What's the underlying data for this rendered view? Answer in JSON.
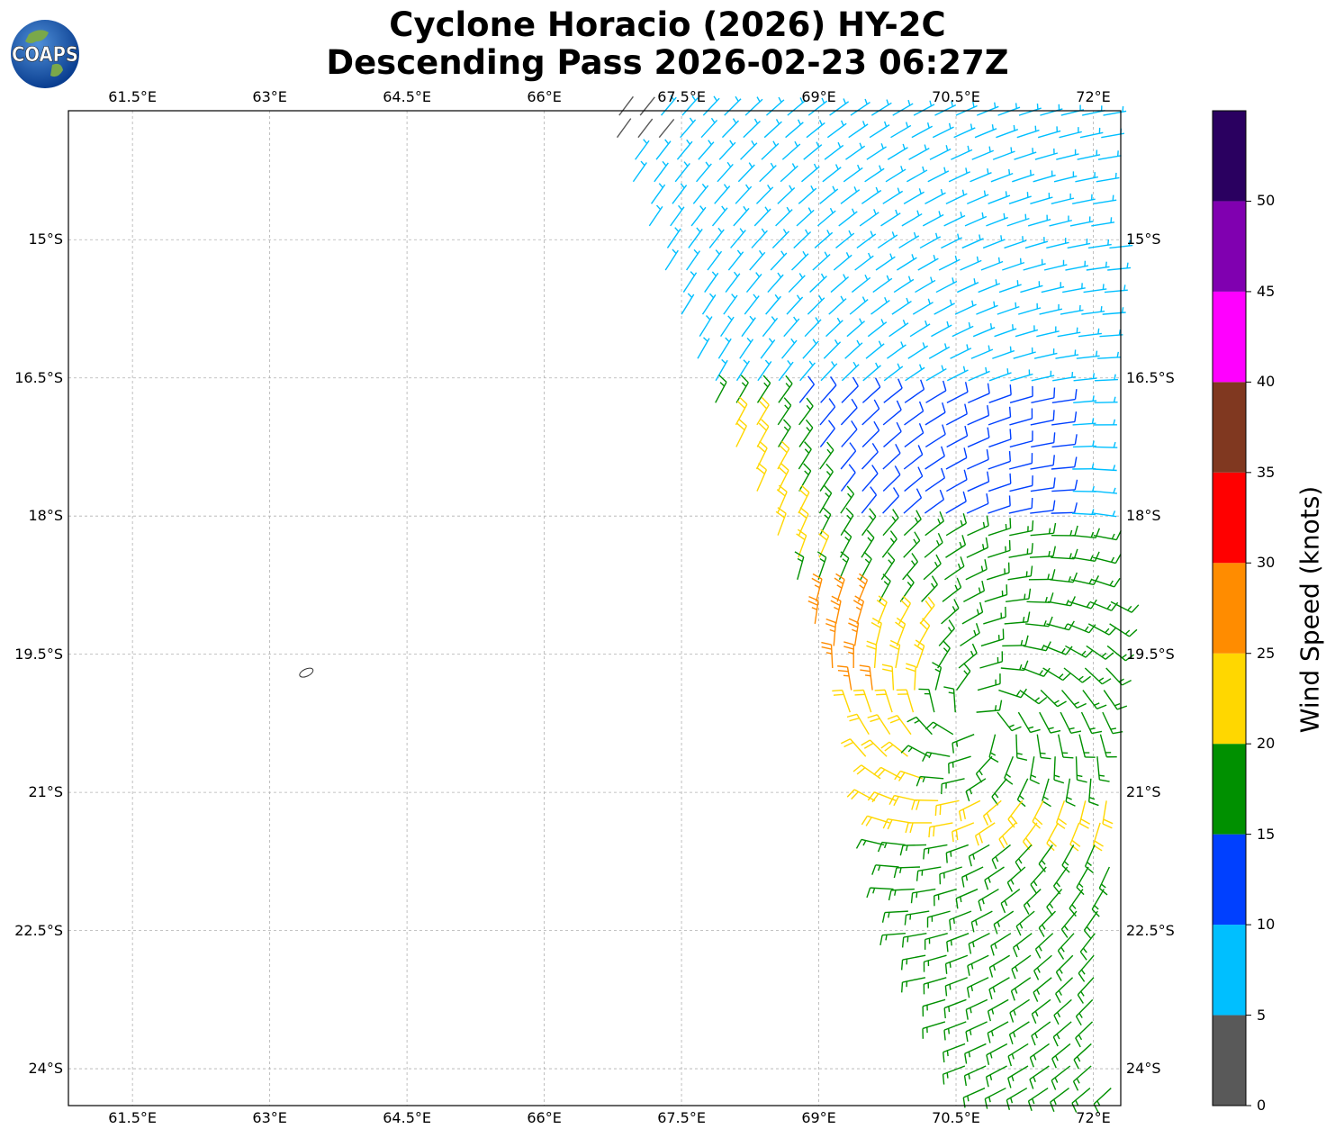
{
  "title": {
    "line1": "Cyclone Horacio (2026) HY-2C",
    "line2": "Descending Pass 2026-02-23 06:27Z"
  },
  "logo": {
    "text": "COAPS"
  },
  "map": {
    "lon_range": [
      60.8,
      72.3
    ],
    "lat_range": [
      -24.4,
      -13.6
    ],
    "lon_ticks": [
      {
        "value": 61.5,
        "label": "61.5°E"
      },
      {
        "value": 63.0,
        "label": "63°E"
      },
      {
        "value": 64.5,
        "label": "64.5°E"
      },
      {
        "value": 66.0,
        "label": "66°E"
      },
      {
        "value": 67.5,
        "label": "67.5°E"
      },
      {
        "value": 69.0,
        "label": "69°E"
      },
      {
        "value": 70.5,
        "label": "70.5°E"
      },
      {
        "value": 72.0,
        "label": "72°E"
      }
    ],
    "lat_ticks": [
      {
        "value": -15.0,
        "label": "15°S"
      },
      {
        "value": -16.5,
        "label": "16.5°S"
      },
      {
        "value": -18.0,
        "label": "18°S"
      },
      {
        "value": -19.5,
        "label": "19.5°S"
      },
      {
        "value": -21.0,
        "label": "21°S"
      },
      {
        "value": -22.5,
        "label": "22.5°S"
      },
      {
        "value": -24.0,
        "label": "24°S"
      }
    ],
    "grid": true,
    "island_center": {
      "lon": 63.4,
      "lat": -19.7
    }
  },
  "colorbar": {
    "title": "Wind Speed (knots)",
    "ticks": [
      "0",
      "5",
      "10",
      "15",
      "20",
      "25",
      "30",
      "35",
      "40",
      "45",
      "50"
    ],
    "bins": [
      {
        "min": 0,
        "max": 5,
        "color": "#595959"
      },
      {
        "min": 5,
        "max": 10,
        "color": "#00bfff"
      },
      {
        "min": 10,
        "max": 15,
        "color": "#0040ff"
      },
      {
        "min": 15,
        "max": 20,
        "color": "#009000"
      },
      {
        "min": 20,
        "max": 25,
        "color": "#ffd700"
      },
      {
        "min": 25,
        "max": 30,
        "color": "#ff8c00"
      },
      {
        "min": 30,
        "max": 35,
        "color": "#ff0000"
      },
      {
        "min": 35,
        "max": 40,
        "color": "#803820"
      },
      {
        "min": 40,
        "max": 45,
        "color": "#ff00ff"
      },
      {
        "min": 45,
        "max": 50,
        "color": "#8000b0"
      },
      {
        "min": 50,
        "max": 55,
        "color": "#2a0060"
      }
    ]
  },
  "chart_data": {
    "type": "wind_barbs",
    "title": "Cyclone Horacio (2026) HY-2C Descending Pass 2026-02-23 06:27Z",
    "units": "knots",
    "swath": {
      "rows": [
        {
          "lat": -13.6,
          "lon_start": 66.8
        },
        {
          "lat": -16.6,
          "lon_start": 67.9
        },
        {
          "lat": -18.5,
          "lon_start": 68.8
        },
        {
          "lat": -20.5,
          "lon_start": 69.6
        },
        {
          "lat": -22.4,
          "lon_start": 70.0
        },
        {
          "lat": -24.4,
          "lon_start": 70.9
        }
      ]
    },
    "wind_field": {
      "center": {
        "lon": 70.7,
        "lat": -20.2
      },
      "regions": [
        {
          "lat_min": -24.4,
          "lat_max": -21.4,
          "speed_kt": 17
        },
        {
          "lat_min": -21.4,
          "lat_max": -19.0,
          "speed_kt": 22
        },
        {
          "lat_min": -19.0,
          "lat_max": -18.0,
          "speed_kt": 18
        },
        {
          "lat_min": -18.0,
          "lat_max": -16.6,
          "speed_kt": 13
        },
        {
          "lat_min": -16.6,
          "lat_max": -13.6,
          "speed_kt": 8
        }
      ],
      "notes": [
        "calm winds (0-5 kt) at northwest swath edge",
        "25-30 kt winds near 69°E 19.2°S"
      ]
    }
  }
}
